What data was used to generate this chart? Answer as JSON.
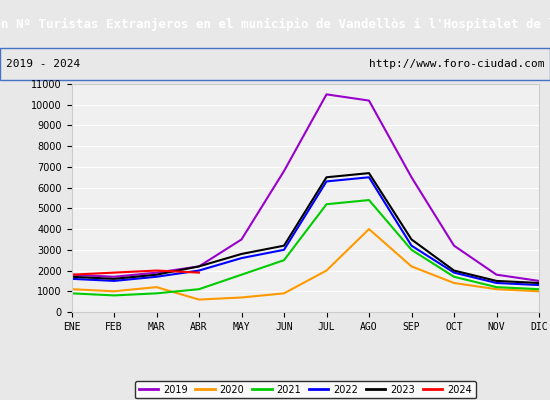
{
  "title": "Evolucion Nº Turistas Extranjeros en el municipio de Vandellòs i l'Hospitalet de l'Infant",
  "subtitle_left": "2019 - 2024",
  "subtitle_right": "http://www.foro-ciudad.com",
  "title_bg": "#4472c4",
  "subtitle_bg": "#ffffff",
  "plot_bg": "#f0f0f0",
  "months": [
    "ENE",
    "FEB",
    "MAR",
    "ABR",
    "MAY",
    "JUN",
    "JUL",
    "AGO",
    "SEP",
    "OCT",
    "NOV",
    "DIC"
  ],
  "series": {
    "2024": {
      "color": "#ff0000",
      "data": [
        1800,
        1900,
        2000,
        1900,
        null,
        null,
        null,
        null,
        null,
        null,
        null,
        null
      ]
    },
    "2023": {
      "color": "#000000",
      "data": [
        1700,
        1600,
        1800,
        2200,
        2800,
        3200,
        6500,
        6700,
        3500,
        2000,
        1500,
        1400
      ]
    },
    "2022": {
      "color": "#0000ff",
      "data": [
        1600,
        1500,
        1700,
        2000,
        2600,
        3000,
        6300,
        6500,
        3200,
        1900,
        1400,
        1300
      ]
    },
    "2021": {
      "color": "#00cc00",
      "data": [
        900,
        800,
        900,
        1100,
        1800,
        2500,
        5200,
        5400,
        3000,
        1700,
        1200,
        1100
      ]
    },
    "2020": {
      "color": "#ff9900",
      "data": [
        1100,
        1000,
        1200,
        600,
        700,
        900,
        2000,
        4000,
        2200,
        1400,
        1100,
        1000
      ]
    },
    "2019": {
      "color": "#9900cc",
      "data": [
        1800,
        1700,
        1900,
        2200,
        3500,
        6800,
        10500,
        10200,
        6500,
        3200,
        1800,
        1500
      ]
    }
  },
  "ylim": [
    0,
    11000
  ],
  "yticks": [
    0,
    1000,
    2000,
    3000,
    4000,
    5000,
    6000,
    7000,
    8000,
    9000,
    10000,
    11000
  ],
  "figsize": [
    5.5,
    4.0
  ],
  "dpi": 100
}
